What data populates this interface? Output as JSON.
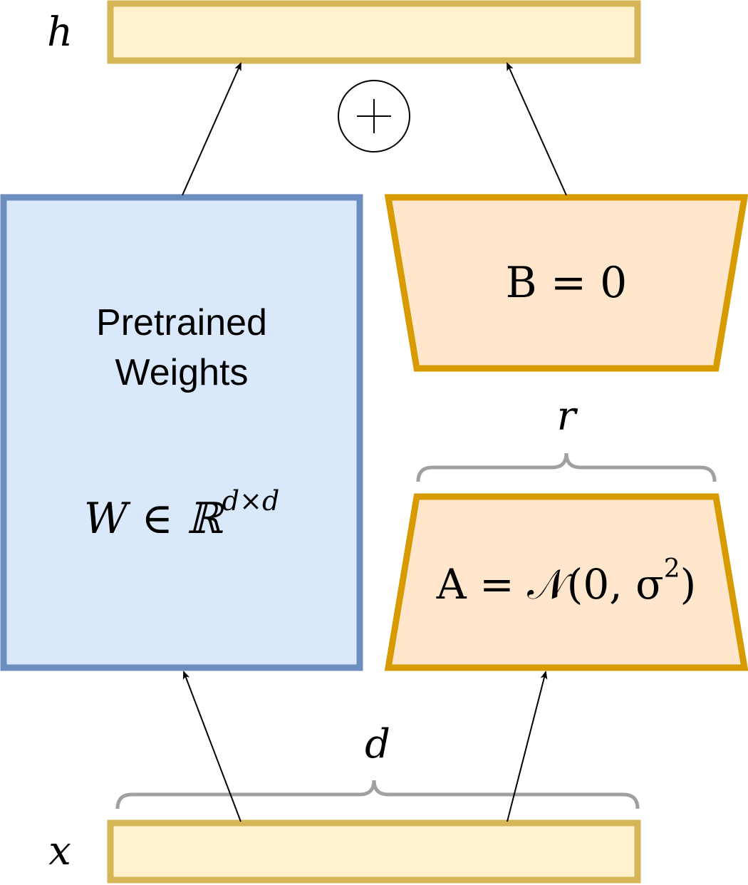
{
  "labels": {
    "output_var": "h",
    "input_var": "x",
    "rank": "r",
    "dim": "d"
  },
  "pretrained": {
    "title_line1": "Pretrained",
    "title_line2": "Weights",
    "formula": {
      "base": "W ∈ ℝ",
      "superscript": "d×d"
    }
  },
  "matrix_b": {
    "formula": "B = 0"
  },
  "matrix_a": {
    "formula": {
      "lhs": "A = 𝒩(0, σ",
      "superscript": "2",
      "close": ")"
    }
  },
  "operator": {
    "symbol": "plus-in-circle"
  },
  "colors": {
    "io_fill": "#fff2cc",
    "io_stroke": "#d6b656",
    "pretrained_fill": "#dae8fc",
    "pretrained_stroke": "#6c8ebf",
    "lora_fill": "#ffe6cc",
    "lora_stroke": "#d79b00",
    "brace": "#a0a0a0",
    "arrow": "#000000"
  }
}
